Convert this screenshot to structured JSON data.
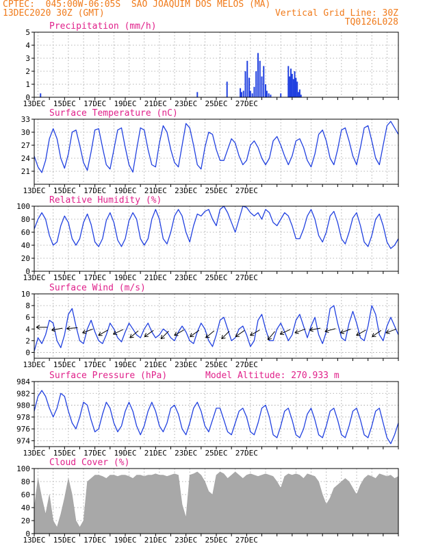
{
  "header": {
    "line1": "CPTEC:  045:00W-06:05S  SAO JOAQUIM DOS MELOS (MA)",
    "line2_left": "13DEC2020 30Z (GMT)",
    "line2_right": "Vertical Grid Line: 30Z",
    "line3_right": "TQ0126L028"
  },
  "colors": {
    "header": "#f07a1a",
    "title": "#e0208a",
    "series": "#2040e0",
    "cloud": "#a8a8a8",
    "grid": "#9a9a9a"
  },
  "x_tick_labels": [
    "13DEC",
    "15DEC",
    "17DEC",
    "19DEC",
    "21DEC",
    "23DEC",
    "25DEC",
    "27DEC"
  ],
  "chart_data": [
    {
      "type": "bar",
      "title": "Precipitation (mm/h)",
      "ylim": [
        0,
        5
      ],
      "yticks": [
        0,
        1,
        2,
        3,
        4,
        5
      ],
      "x_unit": "hours since 13DEC 00Z",
      "x": [
        10,
        258,
        305,
        326,
        328,
        331,
        334,
        337,
        340,
        342,
        345,
        348,
        351,
        354,
        357,
        360,
        363,
        366,
        368,
        371,
        374,
        390,
        402,
        404,
        406,
        408,
        410,
        412,
        414,
        416,
        418,
        420,
        422
      ],
      "values": [
        0.3,
        0.4,
        1.2,
        0.7,
        0.4,
        0.5,
        2.0,
        2.8,
        1.5,
        0.5,
        0.3,
        0.8,
        2.0,
        3.4,
        2.8,
        1.6,
        2.4,
        1.0,
        0.5,
        0.3,
        0.2,
        0.3,
        2.4,
        1.6,
        2.2,
        1.8,
        1.4,
        2.0,
        1.5,
        1.2,
        0.4,
        0.6,
        0.2
      ]
    },
    {
      "type": "line",
      "title": "Surface Temperature (nC)",
      "ylim": [
        18,
        33
      ],
      "yticks": [
        21,
        24,
        27,
        30,
        33
      ],
      "x_unit": "hours since 13DEC 00Z",
      "x": [
        0,
        6,
        12,
        18,
        24,
        30,
        36,
        42,
        48,
        54,
        60,
        66,
        72,
        78,
        84,
        90,
        96,
        102,
        108,
        114,
        120,
        126,
        132,
        138,
        144,
        150,
        156,
        162,
        168,
        174,
        180,
        186,
        192,
        198,
        204,
        210,
        216,
        222,
        228,
        234,
        240,
        246,
        252,
        258,
        264,
        270,
        276,
        282,
        288,
        294,
        300,
        306,
        312,
        318,
        324,
        330,
        336,
        342,
        348,
        354,
        360,
        366,
        372,
        378,
        384,
        390,
        396,
        402,
        408,
        414,
        420,
        426,
        432,
        438,
        444,
        450,
        456,
        462,
        468,
        474,
        480,
        486,
        492,
        498,
        504,
        510,
        516,
        522,
        528,
        534,
        540,
        546,
        552,
        558,
        564,
        570,
        576
      ],
      "values": [
        24.5,
        22.0,
        20.7,
        23.5,
        28.5,
        30.8,
        28.5,
        24.0,
        21.7,
        25.0,
        30.0,
        30.5,
        27.0,
        23.0,
        21.2,
        25.5,
        30.5,
        30.8,
        26.5,
        22.5,
        21.5,
        26.0,
        30.5,
        31.0,
        26.5,
        22.5,
        20.8,
        26.0,
        31.0,
        30.5,
        26.0,
        22.5,
        22.0,
        27.5,
        31.5,
        30.0,
        26.0,
        23.0,
        22.0,
        27.0,
        32.0,
        31.0,
        27.0,
        22.5,
        21.5,
        26.5,
        30.0,
        29.5,
        26.0,
        23.5,
        23.5,
        26.0,
        28.5,
        27.5,
        24.5,
        22.5,
        23.5,
        27.0,
        28.0,
        26.5,
        24.0,
        22.5,
        24.0,
        28.0,
        29.0,
        27.0,
        24.5,
        22.5,
        24.5,
        28.0,
        28.5,
        26.5,
        23.5,
        22.0,
        25.0,
        29.5,
        30.5,
        28.0,
        24.0,
        22.5,
        26.0,
        30.5,
        31.0,
        28.0,
        24.5,
        22.5,
        26.5,
        31.0,
        31.5,
        28.0,
        24.0,
        22.5,
        27.0,
        31.5,
        32.5,
        31.0,
        29.5
      ]
    },
    {
      "type": "line",
      "title": "Relative Humidity (%)",
      "ylim": [
        0,
        100
      ],
      "yticks": [
        0,
        20,
        40,
        60,
        80,
        100
      ],
      "x_unit": "hours since 13DEC 00Z",
      "x": [
        0,
        6,
        12,
        18,
        24,
        30,
        36,
        42,
        48,
        54,
        60,
        66,
        72,
        78,
        84,
        90,
        96,
        102,
        108,
        114,
        120,
        126,
        132,
        138,
        144,
        150,
        156,
        162,
        168,
        174,
        180,
        186,
        192,
        198,
        204,
        210,
        216,
        222,
        228,
        234,
        240,
        246,
        252,
        258,
        264,
        270,
        276,
        282,
        288,
        294,
        300,
        306,
        312,
        318,
        324,
        330,
        336,
        342,
        348,
        354,
        360,
        366,
        372,
        378,
        384,
        390,
        396,
        402,
        408,
        414,
        420,
        426,
        432,
        438,
        444,
        450,
        456,
        462,
        468,
        474,
        480,
        486,
        492,
        498,
        504,
        510,
        516,
        522,
        528,
        534,
        540,
        546,
        552,
        558,
        564,
        570,
        576
      ],
      "values": [
        65,
        80,
        90,
        80,
        55,
        40,
        45,
        70,
        85,
        75,
        50,
        40,
        50,
        75,
        88,
        72,
        45,
        38,
        50,
        78,
        90,
        75,
        48,
        38,
        50,
        78,
        90,
        80,
        50,
        40,
        50,
        80,
        95,
        80,
        50,
        42,
        60,
        85,
        95,
        85,
        60,
        45,
        70,
        88,
        85,
        92,
        95,
        80,
        70,
        95,
        100,
        90,
        75,
        60,
        80,
        100,
        98,
        90,
        85,
        90,
        80,
        95,
        90,
        75,
        70,
        80,
        90,
        85,
        70,
        50,
        50,
        65,
        85,
        95,
        80,
        55,
        45,
        60,
        85,
        92,
        75,
        50,
        42,
        60,
        82,
        90,
        70,
        45,
        38,
        55,
        80,
        88,
        70,
        45,
        35,
        40,
        50
      ]
    },
    {
      "type": "line",
      "title": "Surface Wind (m/s)",
      "ylim": [
        -1,
        10
      ],
      "yticks": [
        0,
        2,
        4,
        6,
        8,
        10
      ],
      "x_unit": "hours since 13DEC 00Z",
      "x": [
        0,
        6,
        12,
        18,
        24,
        30,
        36,
        42,
        48,
        54,
        60,
        66,
        72,
        78,
        84,
        90,
        96,
        102,
        108,
        114,
        120,
        126,
        132,
        138,
        144,
        150,
        156,
        162,
        168,
        174,
        180,
        186,
        192,
        198,
        204,
        210,
        216,
        222,
        228,
        234,
        240,
        246,
        252,
        258,
        264,
        270,
        276,
        282,
        288,
        294,
        300,
        306,
        312,
        318,
        324,
        330,
        336,
        342,
        348,
        354,
        360,
        366,
        372,
        378,
        384,
        390,
        396,
        402,
        408,
        414,
        420,
        426,
        432,
        438,
        444,
        450,
        456,
        462,
        468,
        474,
        480,
        486,
        492,
        498,
        504,
        510,
        516,
        522,
        528,
        534,
        540,
        546,
        552,
        558,
        564,
        570,
        576
      ],
      "values": [
        0.2,
        2.5,
        1.5,
        3.0,
        5.5,
        5.0,
        2.0,
        0.8,
        3.0,
        6.5,
        7.5,
        4.5,
        2.0,
        1.5,
        4.0,
        5.5,
        3.5,
        2.0,
        1.5,
        3.0,
        5.0,
        4.0,
        2.5,
        1.8,
        3.5,
        5.0,
        4.0,
        3.0,
        2.5,
        4.0,
        5.0,
        3.5,
        2.5,
        3.0,
        4.0,
        3.5,
        2.5,
        2.0,
        3.5,
        4.5,
        3.5,
        2.0,
        1.5,
        3.5,
        5.0,
        4.0,
        2.0,
        1.0,
        3.0,
        5.5,
        6.0,
        4.0,
        2.0,
        2.5,
        4.0,
        4.5,
        3.0,
        1.0,
        2.0,
        5.5,
        6.5,
        4.0,
        2.0,
        2.0,
        4.0,
        5.0,
        3.5,
        2.0,
        3.0,
        5.5,
        6.5,
        4.5,
        2.5,
        4.5,
        6.0,
        3.0,
        1.5,
        3.5,
        7.5,
        8.0,
        5.0,
        2.5,
        2.0,
        5.0,
        7.0,
        5.0,
        2.5,
        2.0,
        4.5,
        8.0,
        6.5,
        3.0,
        2.0,
        4.5,
        6.0,
        4.5,
        3.0
      ],
      "barbs_x": [
        12,
        36,
        60,
        84,
        108,
        132,
        156,
        180,
        204,
        228,
        252,
        276,
        300,
        324,
        348,
        372,
        396,
        420,
        444,
        468,
        492,
        516,
        540,
        564
      ],
      "barbs_angle_deg": [
        0,
        10,
        5,
        20,
        30,
        25,
        40,
        35,
        45,
        30,
        35,
        40,
        45,
        35,
        30,
        50,
        25,
        20,
        10,
        15,
        20,
        30,
        35,
        20
      ]
    },
    {
      "type": "line",
      "title": "Surface Pressure (hPa)",
      "annotation": "Model Altitude: 270.933 m",
      "ylim": [
        973,
        984
      ],
      "yticks": [
        974,
        976,
        978,
        980,
        982,
        984
      ],
      "x_unit": "hours since 13DEC 00Z",
      "x": [
        0,
        6,
        12,
        18,
        24,
        30,
        36,
        42,
        48,
        54,
        60,
        66,
        72,
        78,
        84,
        90,
        96,
        102,
        108,
        114,
        120,
        126,
        132,
        138,
        144,
        150,
        156,
        162,
        168,
        174,
        180,
        186,
        192,
        198,
        204,
        210,
        216,
        222,
        228,
        234,
        240,
        246,
        252,
        258,
        264,
        270,
        276,
        282,
        288,
        294,
        300,
        306,
        312,
        318,
        324,
        330,
        336,
        342,
        348,
        354,
        360,
        366,
        372,
        378,
        384,
        390,
        396,
        402,
        408,
        414,
        420,
        426,
        432,
        438,
        444,
        450,
        456,
        462,
        468,
        474,
        480,
        486,
        492,
        498,
        504,
        510,
        516,
        522,
        528,
        534,
        540,
        546,
        552,
        558,
        564,
        570,
        576
      ],
      "values": [
        979.0,
        981.5,
        982.5,
        981.5,
        979.5,
        978.0,
        979.5,
        982.0,
        981.5,
        979.0,
        977.0,
        976.0,
        978.0,
        980.5,
        980.0,
        977.5,
        975.5,
        976.0,
        978.5,
        980.5,
        979.5,
        977.0,
        975.5,
        976.5,
        979.0,
        980.5,
        979.0,
        976.5,
        975.0,
        976.5,
        979.0,
        980.5,
        979.0,
        976.5,
        975.5,
        977.0,
        979.5,
        980.0,
        978.5,
        976.0,
        975.0,
        977.0,
        979.5,
        980.5,
        979.0,
        976.5,
        975.5,
        977.5,
        979.5,
        979.5,
        977.5,
        975.5,
        975.0,
        977.0,
        979.0,
        979.5,
        978.0,
        975.5,
        975.0,
        977.0,
        979.5,
        980.0,
        978.0,
        975.0,
        974.5,
        976.5,
        979.0,
        979.5,
        977.5,
        975.0,
        974.5,
        976.0,
        978.5,
        979.5,
        977.5,
        975.0,
        974.5,
        976.5,
        979.0,
        979.5,
        977.5,
        975.0,
        974.5,
        976.5,
        979.0,
        979.5,
        977.5,
        975.0,
        974.5,
        976.5,
        979.0,
        979.5,
        977.0,
        974.5,
        973.5,
        975.0,
        977.0
      ]
    },
    {
      "type": "area",
      "title": "Cloud Cover (%)",
      "ylim": [
        0,
        100
      ],
      "yticks": [
        0,
        20,
        40,
        60,
        80,
        100
      ],
      "x_unit": "hours since 13DEC 00Z",
      "x": [
        0,
        6,
        12,
        18,
        24,
        30,
        36,
        42,
        48,
        54,
        60,
        66,
        72,
        78,
        84,
        90,
        96,
        102,
        108,
        114,
        120,
        126,
        132,
        138,
        144,
        150,
        156,
        162,
        168,
        174,
        180,
        186,
        192,
        198,
        204,
        210,
        216,
        222,
        228,
        234,
        240,
        246,
        252,
        258,
        264,
        270,
        276,
        282,
        288,
        294,
        300,
        306,
        312,
        318,
        324,
        330,
        336,
        342,
        348,
        354,
        360,
        366,
        372,
        378,
        384,
        390,
        396,
        402,
        408,
        414,
        420,
        426,
        432,
        438,
        444,
        450,
        456,
        462,
        468,
        474,
        480,
        486,
        492,
        498,
        504,
        510,
        516,
        522,
        528,
        534,
        540,
        546,
        552,
        558,
        564,
        570,
        576
      ],
      "values": [
        40,
        85,
        55,
        30,
        60,
        20,
        10,
        30,
        55,
        85,
        60,
        20,
        10,
        20,
        80,
        85,
        90,
        90,
        88,
        85,
        90,
        90,
        88,
        90,
        90,
        88,
        85,
        90,
        90,
        88,
        90,
        90,
        92,
        90,
        90,
        88,
        90,
        92,
        90,
        45,
        25,
        90,
        92,
        95,
        90,
        80,
        65,
        60,
        90,
        95,
        92,
        85,
        90,
        95,
        90,
        85,
        90,
        92,
        90,
        88,
        90,
        92,
        90,
        88,
        80,
        70,
        88,
        92,
        90,
        92,
        90,
        85,
        92,
        90,
        88,
        80,
        60,
        45,
        55,
        70,
        75,
        80,
        85,
        80,
        70,
        60,
        75,
        85,
        90,
        88,
        85,
        92,
        90,
        88,
        90,
        85,
        88
      ]
    }
  ]
}
